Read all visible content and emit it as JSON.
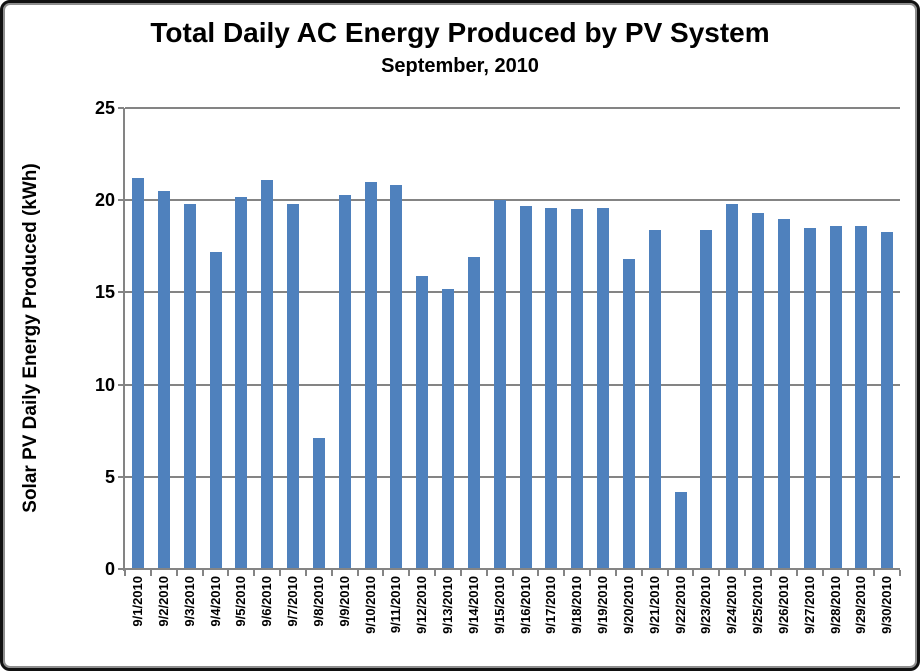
{
  "chart_data": {
    "type": "bar",
    "title": "Total Daily AC Energy Produced by PV System",
    "subtitle": "September, 2010",
    "xlabel": "",
    "ylabel": "Solar PV Daily Energy Produced (kWh)",
    "categories": [
      "9/1/2010",
      "9/2/2010",
      "9/3/2010",
      "9/4/2010",
      "9/5/2010",
      "9/6/2010",
      "9/7/2010",
      "9/8/2010",
      "9/9/2010",
      "9/10/2010",
      "9/11/2010",
      "9/12/2010",
      "9/13/2010",
      "9/14/2010",
      "9/15/2010",
      "9/16/2010",
      "9/17/2010",
      "9/18/2010",
      "9/19/2010",
      "9/20/2010",
      "9/21/2010",
      "9/22/2010",
      "9/23/2010",
      "9/24/2010",
      "9/25/2010",
      "9/26/2010",
      "9/27/2010",
      "9/28/2010",
      "9/29/2010",
      "9/30/2010"
    ],
    "values": [
      21.2,
      20.5,
      19.8,
      17.2,
      20.2,
      21.1,
      19.8,
      7.1,
      20.3,
      21.0,
      20.8,
      15.9,
      15.2,
      16.9,
      20.0,
      19.7,
      19.6,
      19.5,
      19.6,
      16.8,
      18.4,
      4.2,
      18.4,
      19.8,
      19.3,
      19.0,
      18.5,
      18.6,
      18.6,
      18.3
    ],
    "ylim": [
      0,
      25
    ],
    "yticks": [
      0,
      5,
      10,
      15,
      20,
      25
    ],
    "grid": "horizontal",
    "legend_position": "none",
    "colors": {
      "bar": "#4F81BD",
      "axis": "#848484",
      "gridline": "#848484",
      "text": "#000000",
      "background": "#FFFFFF",
      "frame": "#111111"
    }
  }
}
